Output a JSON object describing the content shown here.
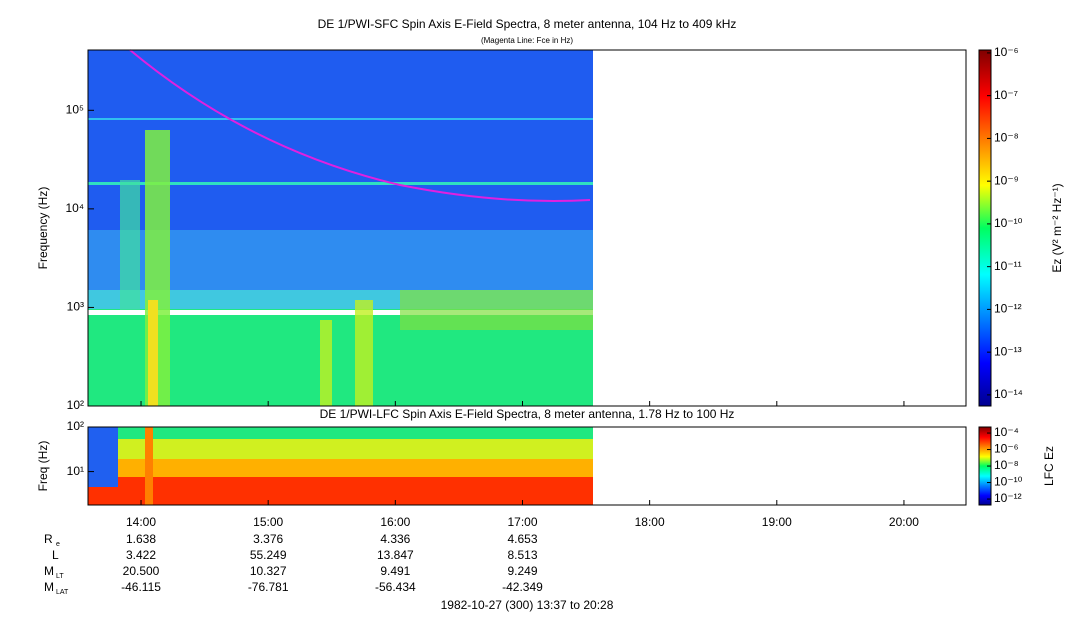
{
  "chart_data": [
    {
      "type": "spectrogram",
      "title": "DE 1/PWI-SFC  Spin Axis E-Field Spectra, 8 meter antenna, 104 Hz to 409 kHz",
      "subtitle": "(Magenta Line: Fce in Hz)",
      "ylabel": "Frequency (Hz)",
      "log": true,
      "xlim": [
        13.583,
        20.488
      ],
      "ylim": [
        100,
        409000
      ],
      "yticks": [
        {
          "value": 100,
          "label": "10²"
        },
        {
          "value": 1000,
          "label": "10³"
        },
        {
          "value": 10000,
          "label": "10⁴"
        },
        {
          "value": 100000,
          "label": "10⁵"
        }
      ],
      "colorbar_label": "Ez (V² m⁻² Hz⁻¹)",
      "clim": [
        5.5e-15,
        1.17e-06
      ],
      "cticks": [
        {
          "value": 1e-06,
          "label": "10⁻⁶"
        },
        {
          "value": 1e-07,
          "label": "10⁻⁷"
        },
        {
          "value": 1e-08,
          "label": "10⁻⁸"
        },
        {
          "value": 1e-09,
          "label": "10⁻⁹"
        },
        {
          "value": 1e-10,
          "label": "10⁻¹⁰"
        },
        {
          "value": 1e-11,
          "label": "10⁻¹¹"
        },
        {
          "value": 1e-12,
          "label": "10⁻¹²"
        },
        {
          "value": 1e-13,
          "label": "10⁻¹³"
        },
        {
          "value": 1e-14,
          "label": "10⁻¹⁴"
        }
      ]
    },
    {
      "type": "spectrogram",
      "title": "DE 1/PWI-LFC  Spin Axis E-Field Spectra, 8 meter antenna, 1.78 Hz to 100 Hz",
      "ylabel": "Freq (Hz)",
      "log": true,
      "xlim": [
        13.583,
        20.488
      ],
      "ylim": [
        1.78,
        100
      ],
      "yticks": [
        {
          "value": 10,
          "label": "10¹"
        },
        {
          "value": 100,
          "label": "10²"
        }
      ],
      "xticks": [
        {
          "value": 14,
          "label": "14:00"
        },
        {
          "value": 15,
          "label": "15:00"
        },
        {
          "value": 16,
          "label": "16:00"
        },
        {
          "value": 17,
          "label": "17:00"
        },
        {
          "value": 18,
          "label": "18:00"
        },
        {
          "value": 19,
          "label": "19:00"
        },
        {
          "value": 20,
          "label": "20:00"
        }
      ],
      "colorbar_label": "LFC Ez",
      "clim": [
        1.9e-13,
        0.00054
      ],
      "cticks": [
        {
          "value": 0.0001,
          "label": "10⁻⁴"
        },
        {
          "value": 1e-06,
          "label": "10⁻⁶"
        },
        {
          "value": 1e-08,
          "label": "10⁻⁸"
        },
        {
          "value": 1e-10,
          "label": "10⁻¹⁰"
        },
        {
          "value": 1e-12,
          "label": "10⁻¹²"
        }
      ]
    }
  ],
  "ephemeris": {
    "rows": [
      {
        "name": "R",
        "subscript": "e",
        "values": [
          "1.638",
          "3.376",
          "4.336",
          "4.653"
        ]
      },
      {
        "name": "L",
        "values": [
          "3.422",
          "55.249",
          "13.847",
          "8.513"
        ]
      },
      {
        "name": "M",
        "subscript": "LT",
        "values": [
          "20.500",
          "10.327",
          "9.491",
          "9.249"
        ]
      },
      {
        "name": "M",
        "subscript": "LAT",
        "values": [
          "-46.115",
          "-76.781",
          "-56.434",
          "-42.349"
        ]
      }
    ]
  },
  "footer": "1982-10-27 (300) 13:37 to 20:28"
}
